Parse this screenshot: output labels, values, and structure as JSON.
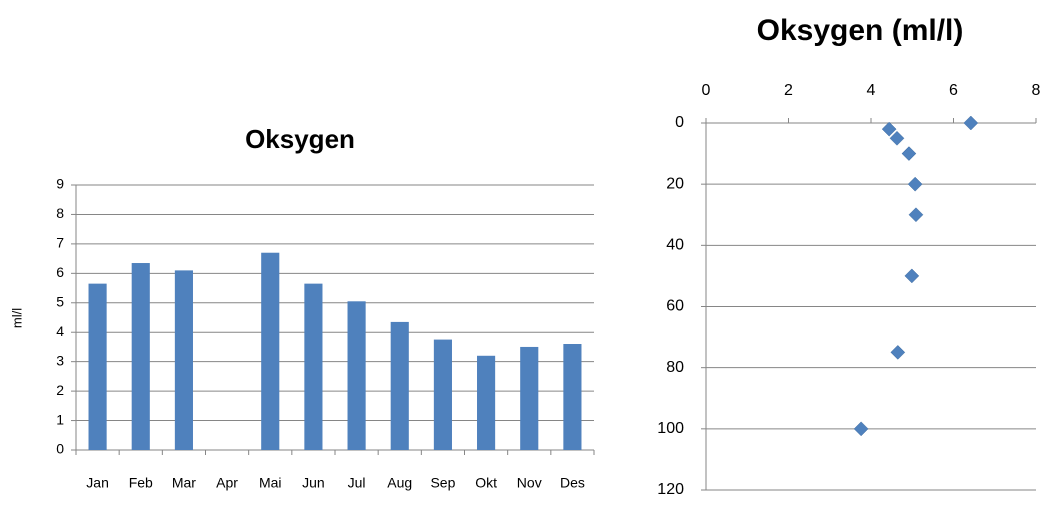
{
  "chart_data": [
    {
      "type": "bar",
      "title": "Oksygen",
      "y_label": "ml/l",
      "categories": [
        "Jan",
        "Feb",
        "Mar",
        "Apr",
        "Mai",
        "Jun",
        "Jul",
        "Aug",
        "Sep",
        "Okt",
        "Nov",
        "Des"
      ],
      "values": [
        5.65,
        6.35,
        6.1,
        null,
        6.7,
        5.65,
        5.05,
        4.35,
        3.75,
        3.2,
        3.5,
        3.6
      ],
      "color": "#4f81bd",
      "ylim": [
        0,
        9
      ],
      "yticks": [
        0,
        1,
        2,
        3,
        4,
        5,
        6,
        7,
        8,
        9
      ],
      "grid": true
    },
    {
      "type": "scatter",
      "title": "Oksygen (ml/l)",
      "x": [
        6.42,
        4.44,
        4.63,
        4.92,
        5.07,
        5.09,
        4.99,
        4.65,
        3.76
      ],
      "y": [
        0,
        2,
        5,
        10,
        20,
        30,
        50,
        75,
        100
      ],
      "color": "#4f81bd",
      "xlim": [
        0,
        8
      ],
      "xticks": [
        0,
        2,
        4,
        6,
        8
      ],
      "ylim": [
        0,
        120
      ],
      "yticks": [
        0,
        20,
        40,
        60,
        80,
        100,
        120
      ],
      "y_inverted": true,
      "x_axis_position": "top",
      "grid": true
    }
  ]
}
